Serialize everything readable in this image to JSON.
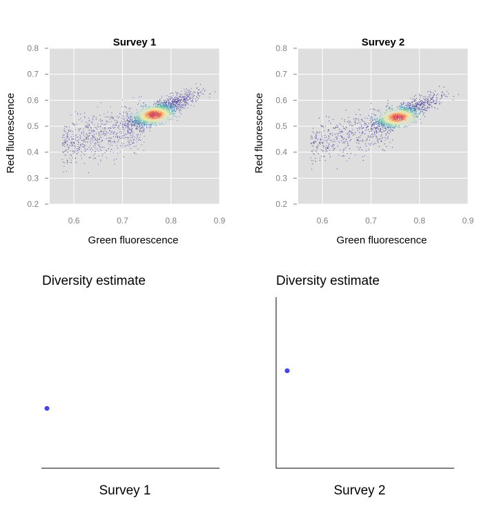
{
  "chart_data": [
    {
      "type": "scatter",
      "title": "Survey 1",
      "xlabel": "Green fluorescence",
      "ylabel": "Red fluorescence",
      "xlim": [
        0.55,
        0.9
      ],
      "ylim": [
        0.2,
        0.8
      ],
      "xticks": [
        "0.6",
        "0.7",
        "0.8",
        "0.9"
      ],
      "yticks": [
        "0.2",
        "0.3",
        "0.4",
        "0.5",
        "0.6",
        "0.7",
        "0.8"
      ],
      "grid": true,
      "background": "#dedede",
      "colormap": "spectral density (blue low, red high)",
      "density_peak": [
        0.765,
        0.545
      ]
    },
    {
      "type": "scatter",
      "title": "Survey 2",
      "xlabel": "Green fluorescence",
      "ylabel": "Red fluorescence",
      "xlim": [
        0.55,
        0.9
      ],
      "ylim": [
        0.2,
        0.8
      ],
      "xticks": [
        "0.6",
        "0.7",
        "0.8",
        "0.9"
      ],
      "yticks": [
        "0.2",
        "0.3",
        "0.4",
        "0.5",
        "0.6",
        "0.7",
        "0.8"
      ],
      "grid": true,
      "background": "#dedede",
      "colormap": "spectral density (blue low, red high)",
      "density_peak": [
        0.755,
        0.535
      ]
    },
    {
      "type": "scatter",
      "title": "Diversity estimate",
      "xlabel": "Survey 1",
      "values": [
        0.35
      ],
      "ylim": [
        0,
        1
      ],
      "point_color": "#4444ee"
    },
    {
      "type": "scatter",
      "title": "Diversity estimate",
      "xlabel": "Survey 2",
      "values": [
        0.57
      ],
      "ylim": [
        0,
        1
      ],
      "point_color": "#4444ee"
    }
  ]
}
